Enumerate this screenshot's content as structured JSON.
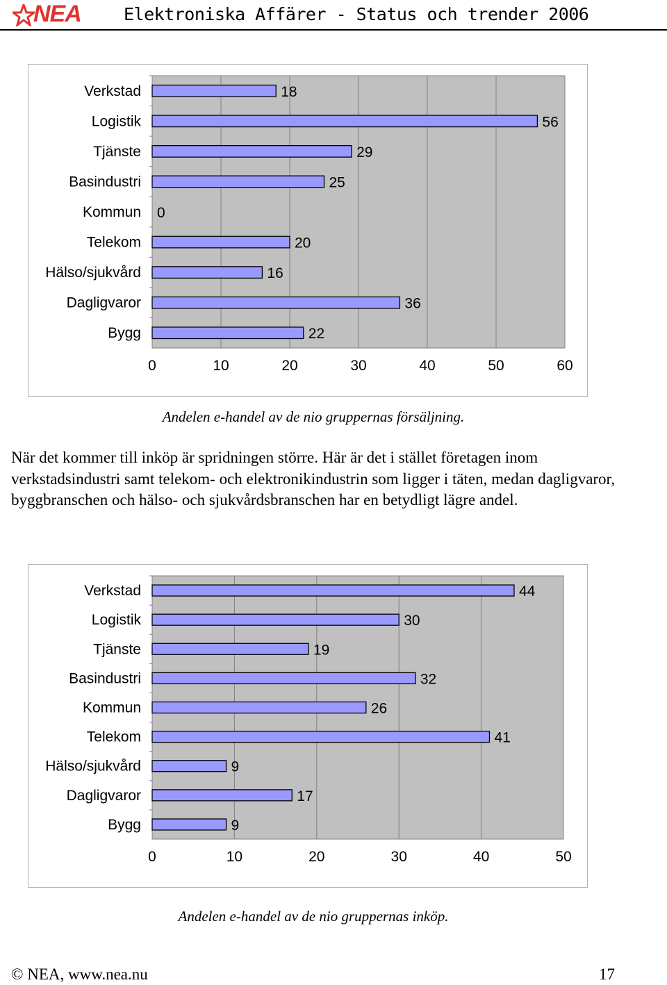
{
  "header": {
    "logo_text": "NEA",
    "logo_icon": "star-icon",
    "title": "Elektroniska Affärer - Status och trender 2006"
  },
  "colors": {
    "plot_bg": "#c0c0c0",
    "bar_fill": "#9999ff",
    "logo_red": "#e0332f"
  },
  "chart_data": [
    {
      "type": "bar",
      "orientation": "horizontal",
      "categories": [
        "Verkstad",
        "Logistik",
        "Tjänste",
        "Basindustri",
        "Kommun",
        "Telekom",
        "Hälso/sjukvård",
        "Dagligvaror",
        "Bygg"
      ],
      "values": [
        18,
        56,
        29,
        25,
        0,
        20,
        16,
        36,
        22
      ],
      "xlim": [
        0,
        60
      ],
      "xticks": [
        0,
        10,
        20,
        30,
        40,
        50,
        60
      ],
      "grid": true,
      "caption": "Andelen e-handel av de nio gruppernas försäljning."
    },
    {
      "type": "bar",
      "orientation": "horizontal",
      "categories": [
        "Verkstad",
        "Logistik",
        "Tjänste",
        "Basindustri",
        "Kommun",
        "Telekom",
        "Hälso/sjukvård",
        "Dagligvaror",
        "Bygg"
      ],
      "values": [
        44,
        30,
        19,
        32,
        26,
        41,
        9,
        17,
        9
      ],
      "xlim": [
        0,
        50
      ],
      "xticks": [
        0,
        10,
        20,
        30,
        40,
        50
      ],
      "grid": true,
      "caption": "Andelen e-handel av de nio gruppernas inköp."
    }
  ],
  "paragraph": "När det kommer till inköp är spridningen större. Här är det i stället företagen inom verkstadsindustri samt telekom- och elektronikindustrin som ligger i täten, medan dagligvaror, byggbranschen och hälso- och sjukvårdsbranschen har en betydligt lägre andel.",
  "footer": {
    "copyright": "© NEA, www.nea.nu",
    "page_number": "17"
  }
}
